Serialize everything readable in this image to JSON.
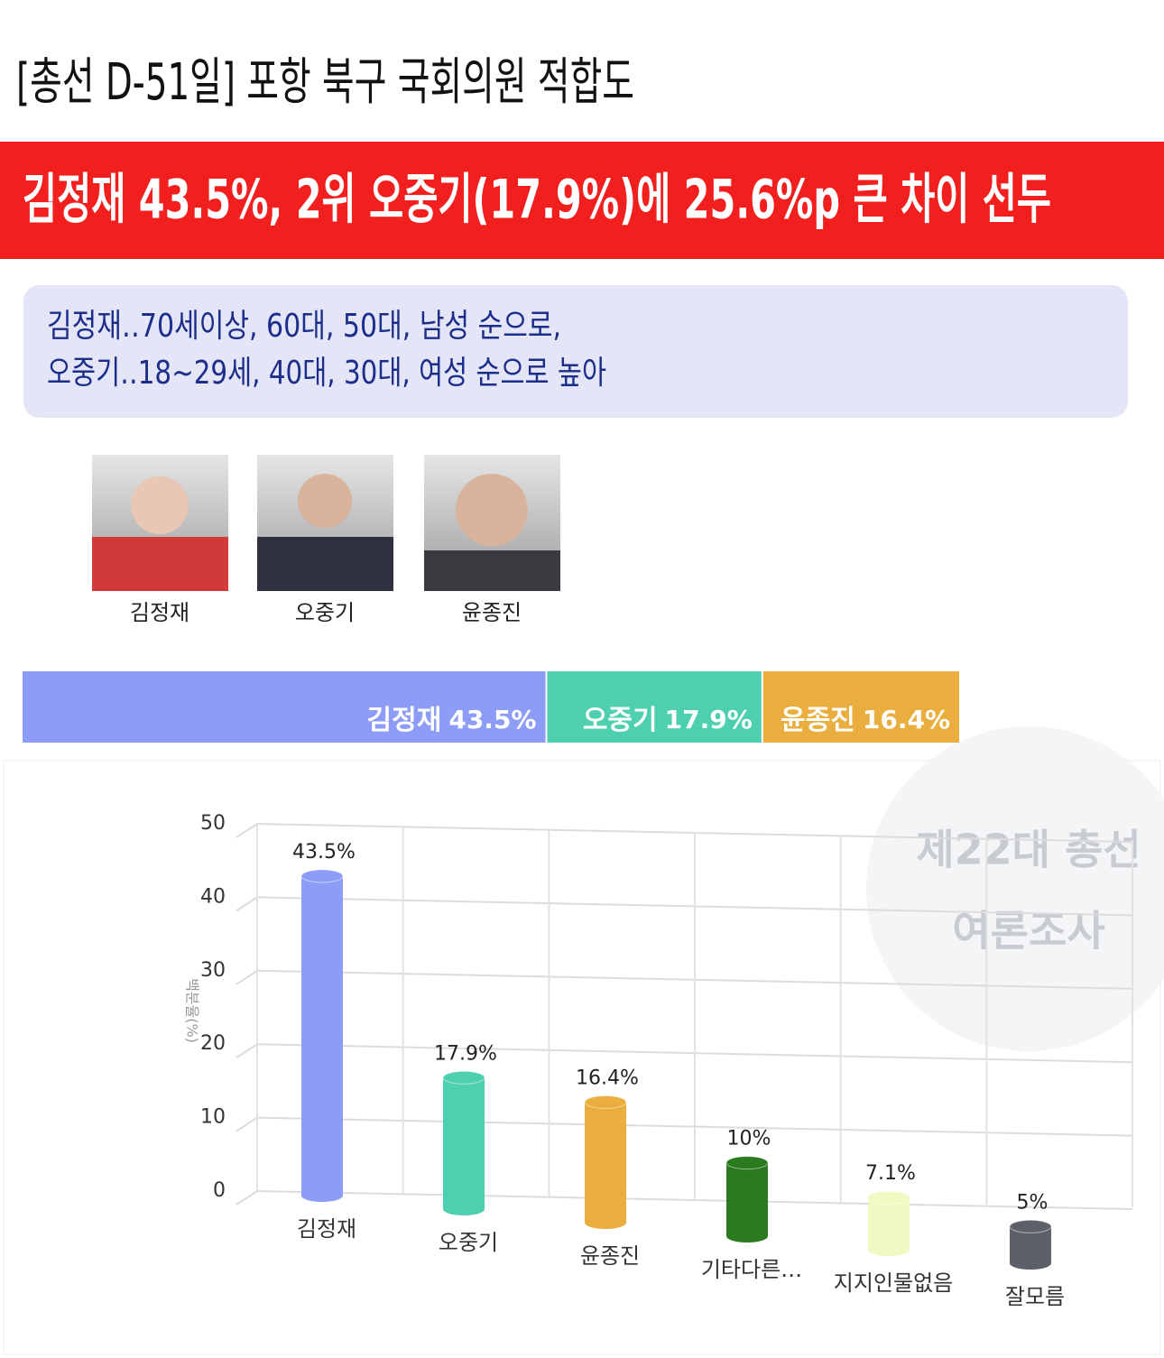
{
  "header": {
    "title": "[총선 D-51일] 포항 북구 국회의원 적합도"
  },
  "headline": "김정재 43.5%, 2위 오중기(17.9%)에 25.6%p 큰 차이 선두",
  "summary": [
    "김정재‥70세이상, 60대, 50대, 남성 순으로,",
    "오중기‥18~29세, 40대, 30대, 여성 순으로 높아"
  ],
  "candidates": [
    "김정재",
    "오중기",
    "윤종진"
  ],
  "stack": {
    "segments": [
      {
        "name": "김정재",
        "value": 43.5,
        "value_label": "43.5%",
        "color": "#8d9cf6"
      },
      {
        "name": "오중기",
        "value": 17.9,
        "value_label": "17.9%",
        "color": "#4ecfb0"
      },
      {
        "name": "윤종진",
        "value": 16.4,
        "value_label": "16.4%",
        "color": "#e9ae3d"
      }
    ]
  },
  "chart_data": {
    "type": "bar",
    "watermark": [
      "제22대 총선",
      "여론조사"
    ],
    "ylabel": "백분율(%)",
    "categories": [
      "김정재",
      "오중기",
      "윤종진",
      "기타다른…",
      "지지인물없음",
      "잘모름"
    ],
    "values": [
      43.5,
      17.9,
      16.4,
      10,
      7.1,
      5
    ],
    "value_labels": [
      "43.5%",
      "17.9%",
      "16.4%",
      "10%",
      "7.1%",
      "5%"
    ],
    "colors": [
      "#8d9cf6",
      "#4ecfb0",
      "#e9ae3d",
      "#2b7a1f",
      "#f1f8c2",
      "#5d6068"
    ],
    "ylim": [
      0,
      50
    ],
    "yticks": [
      0,
      10,
      20,
      30,
      40,
      50
    ],
    "grid": true
  }
}
